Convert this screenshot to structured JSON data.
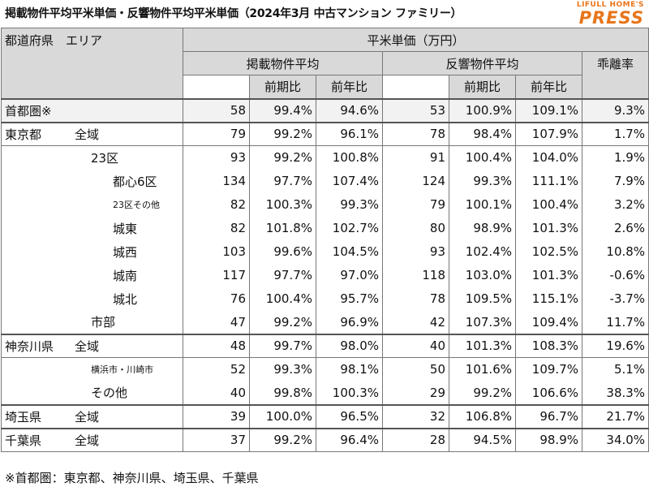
{
  "title": "掲載物件平均平米単価・反響物件平均平米単価（2024年3月 中古マンション ファミリー）",
  "logo": {
    "line1": "LIFULL HOME'S",
    "line2": "PRESS",
    "color": "#e8751a"
  },
  "header": {
    "region": "都道府県　エリア",
    "unit": "平米単価（万円）",
    "listed": "掲載物件平均",
    "inquiry": "反響物件平均",
    "gap": "乖離率",
    "qoq": "前期比",
    "yoy": "前年比"
  },
  "rows": [
    {
      "pref": "首都圏※",
      "area": "",
      "lp": "58",
      "lq": "99.4%",
      "ly": "94.6%",
      "ip": "53",
      "iq": "100.9%",
      "iy": "109.1%",
      "gap": "9.3%"
    },
    {
      "pref": "東京都",
      "area": "全域",
      "lp": "79",
      "lq": "99.2%",
      "ly": "96.1%",
      "ip": "78",
      "iq": "98.4%",
      "iy": "107.9%",
      "gap": "1.7%"
    },
    {
      "pref": "",
      "area": "23区",
      "lp": "93",
      "lq": "99.2%",
      "ly": "100.8%",
      "ip": "91",
      "iq": "100.4%",
      "iy": "104.0%",
      "gap": "1.9%"
    },
    {
      "pref": "",
      "area": "都心6区",
      "lp": "134",
      "lq": "97.7%",
      "ly": "107.4%",
      "ip": "124",
      "iq": "99.3%",
      "iy": "111.1%",
      "gap": "7.9%"
    },
    {
      "pref": "",
      "area": "23区その他",
      "lp": "82",
      "lq": "100.3%",
      "ly": "99.3%",
      "ip": "79",
      "iq": "100.1%",
      "iy": "100.4%",
      "gap": "3.2%"
    },
    {
      "pref": "",
      "area": "城東",
      "lp": "82",
      "lq": "101.8%",
      "ly": "102.7%",
      "ip": "80",
      "iq": "98.9%",
      "iy": "101.3%",
      "gap": "2.6%"
    },
    {
      "pref": "",
      "area": "城西",
      "lp": "103",
      "lq": "99.6%",
      "ly": "104.5%",
      "ip": "93",
      "iq": "102.4%",
      "iy": "102.5%",
      "gap": "10.8%"
    },
    {
      "pref": "",
      "area": "城南",
      "lp": "117",
      "lq": "97.7%",
      "ly": "97.0%",
      "ip": "118",
      "iq": "103.0%",
      "iy": "101.3%",
      "gap": "-0.6%"
    },
    {
      "pref": "",
      "area": "城北",
      "lp": "76",
      "lq": "100.4%",
      "ly": "95.7%",
      "ip": "78",
      "iq": "109.5%",
      "iy": "115.1%",
      "gap": "-3.7%"
    },
    {
      "pref": "",
      "area": "市部",
      "lp": "47",
      "lq": "99.2%",
      "ly": "96.9%",
      "ip": "42",
      "iq": "107.3%",
      "iy": "109.4%",
      "gap": "11.7%"
    },
    {
      "pref": "神奈川県",
      "area": "全域",
      "lp": "48",
      "lq": "99.7%",
      "ly": "98.0%",
      "ip": "40",
      "iq": "101.3%",
      "iy": "108.3%",
      "gap": "19.6%"
    },
    {
      "pref": "",
      "area": "横浜市・川崎市",
      "lp": "52",
      "lq": "99.3%",
      "ly": "98.1%",
      "ip": "50",
      "iq": "101.6%",
      "iy": "109.7%",
      "gap": "5.1%"
    },
    {
      "pref": "",
      "area": "その他",
      "lp": "40",
      "lq": "99.8%",
      "ly": "100.3%",
      "ip": "29",
      "iq": "99.2%",
      "iy": "106.6%",
      "gap": "38.3%"
    },
    {
      "pref": "埼玉県",
      "area": "全域",
      "lp": "39",
      "lq": "100.0%",
      "ly": "96.5%",
      "ip": "32",
      "iq": "106.8%",
      "iy": "96.7%",
      "gap": "21.7%"
    },
    {
      "pref": "千葉県",
      "area": "全域",
      "lp": "37",
      "lq": "99.2%",
      "ly": "96.4%",
      "ip": "28",
      "iq": "94.5%",
      "iy": "98.9%",
      "gap": "34.0%"
    }
  ],
  "footnote": "※首都圏：東京都、神奈川県、埼玉県、千葉県"
}
